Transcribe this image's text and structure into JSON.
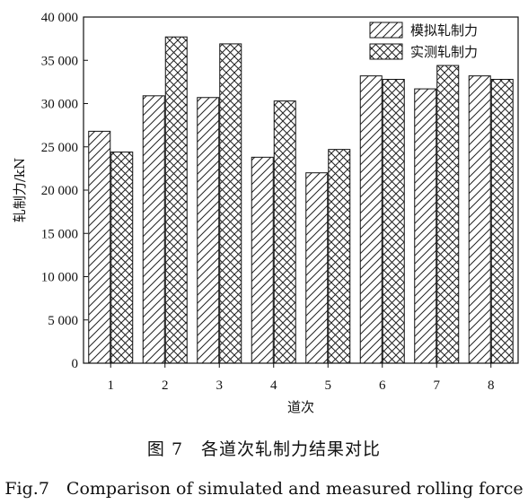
{
  "chart_data": {
    "type": "bar",
    "categories": [
      "1",
      "2",
      "3",
      "4",
      "5",
      "6",
      "7",
      "8"
    ],
    "series": [
      {
        "name": "模拟轧制力",
        "values": [
          26800,
          30900,
          30700,
          23800,
          22000,
          33200,
          31700,
          33200
        ],
        "pattern": "diagonal-hatch"
      },
      {
        "name": "实测轧制力",
        "values": [
          24400,
          37700,
          36900,
          30300,
          24700,
          32800,
          34400,
          32800
        ],
        "pattern": "cross-hatch"
      }
    ],
    "xlabel": "道次",
    "ylabel": "轧制力/kN",
    "ylim": [
      0,
      40000
    ],
    "yticks": [
      0,
      5000,
      10000,
      15000,
      20000,
      25000,
      30000,
      35000,
      40000
    ],
    "ytick_labels": [
      "0",
      "5 000",
      "10 000",
      "15 000",
      "20 000",
      "25 000",
      "30 000",
      "35 000",
      "40 000"
    ],
    "legend_position": "top-right",
    "grid": false
  },
  "captions": {
    "zh": "图 7　各道次轧制力结果对比",
    "en": "Fig.7　Comparison of simulated and measured rolling force"
  }
}
